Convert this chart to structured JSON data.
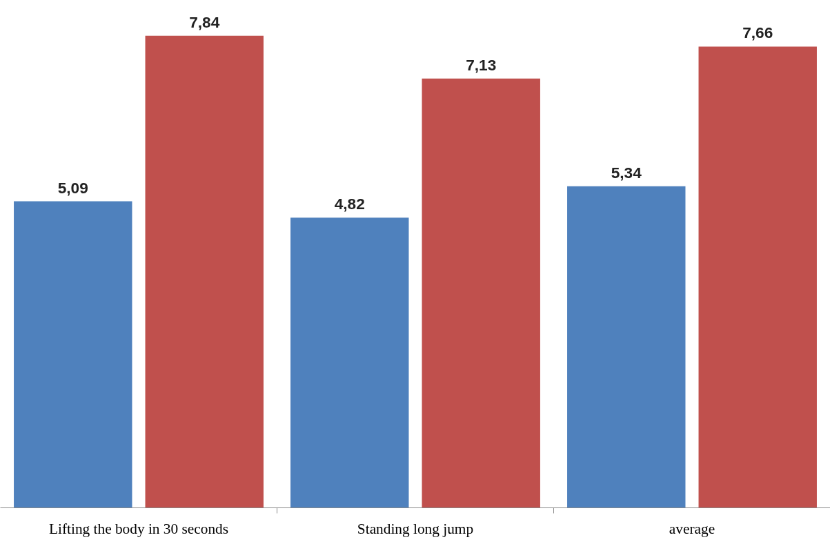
{
  "chart_data": {
    "type": "bar",
    "categories": [
      "Lifting the body in 30 seconds",
      "Standing long jump",
      "average"
    ],
    "series": [
      {
        "color": "#4f81bd",
        "values": [
          5.09,
          4.82,
          5.34
        ],
        "value_labels": [
          "5,09",
          "4,82",
          "5,34"
        ]
      },
      {
        "color": "#c0504d",
        "values": [
          7.84,
          7.13,
          7.66
        ],
        "value_labels": [
          "7,84",
          "7,13",
          "7,66"
        ]
      }
    ],
    "grid": false
  }
}
